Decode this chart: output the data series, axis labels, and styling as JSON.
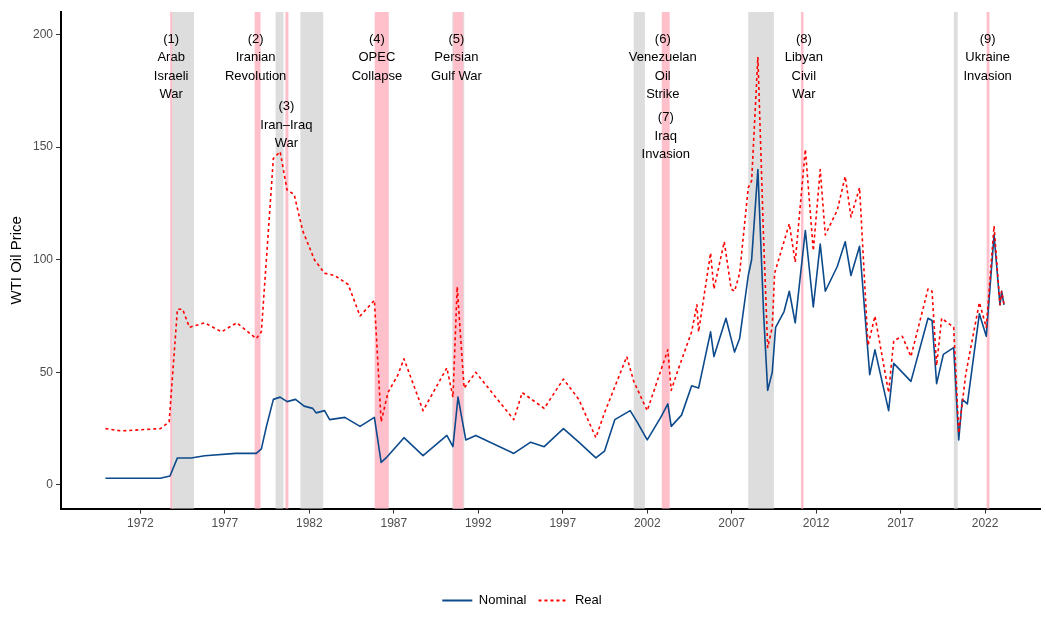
{
  "chart_data": {
    "type": "line",
    "ylabel": "WTI Oil Price",
    "legend": "bottom",
    "xlim": [
      1967.3,
      2025.25
    ],
    "xticks": [
      1972,
      1977,
      1982,
      1987,
      1992,
      1997,
      2002,
      2007,
      2012,
      2017,
      2022
    ],
    "ylim": [
      -10.5,
      210
    ],
    "yticks": [
      0,
      50,
      100,
      150,
      200
    ],
    "series": [
      {
        "name": "Nominal",
        "color": "#0c4a8c",
        "line_style": "solid",
        "x": [
          1969.93,
          1973.18,
          1973.75,
          1974.19,
          1975.0,
          1975.81,
          1977.64,
          1978.86,
          1979.16,
          1979.46,
          1979.87,
          1980.27,
          1980.68,
          1981.18,
          1981.69,
          1982.2,
          1982.4,
          1982.9,
          1983.2,
          1984.1,
          1985.0,
          1985.85,
          1986.25,
          1986.54,
          1987.25,
          1987.6,
          1988.73,
          1990.14,
          1990.5,
          1990.8,
          1991.26,
          1991.85,
          1994.1,
          1995.1,
          1995.9,
          1997.04,
          1997.95,
          1998.96,
          1999.47,
          2000.08,
          2000.99,
          2001.4,
          2002.0,
          2002.8,
          2003.22,
          2003.42,
          2004.03,
          2004.63,
          2005.04,
          2005.75,
          2005.95,
          2006.66,
          2007.17,
          2007.47,
          2007.98,
          2008.18,
          2008.55,
          2008.89,
          2009.13,
          2009.4,
          2009.6,
          2010.1,
          2010.41,
          2010.76,
          2011.36,
          2011.83,
          2012.24,
          2012.54,
          2013.25,
          2013.72,
          2014.06,
          2014.57,
          2015.17,
          2015.48,
          2016.29,
          2016.59,
          2017.61,
          2018.62,
          2018.86,
          2019.13,
          2019.53,
          2020.14,
          2020.44,
          2020.65,
          2020.95,
          2021.66,
          2022.07,
          2022.53,
          2022.88,
          2022.98,
          2023.12
        ],
        "values": [
          3,
          3,
          4,
          12,
          12,
          13,
          14,
          14,
          16,
          26,
          38,
          39,
          37,
          38,
          35,
          34,
          32,
          33,
          29,
          30,
          26,
          30,
          10,
          12,
          18,
          21,
          13,
          22,
          17,
          39,
          20,
          22,
          14,
          19,
          17,
          25,
          19,
          12,
          15,
          29,
          33,
          28,
          20,
          30,
          36,
          26,
          31,
          44,
          43,
          68,
          57,
          74,
          59,
          65,
          93,
          100,
          140,
          76,
          42,
          50,
          70,
          77,
          86,
          72,
          113,
          79,
          107,
          86,
          97,
          108,
          93,
          106,
          49,
          60,
          33,
          54,
          46,
          74,
          73,
          45,
          58,
          61,
          20,
          38,
          36,
          76,
          66,
          111,
          80,
          86,
          80
        ]
      },
      {
        "name": "Real",
        "color": "#ff0000",
        "line_style": "dotted",
        "x": [
          1969.93,
          1970.85,
          1973.18,
          1973.7,
          1974.19,
          1974.5,
          1974.9,
          1975.81,
          1976.8,
          1977.7,
          1978.86,
          1979.16,
          1979.87,
          1980.27,
          1980.68,
          1981.1,
          1981.6,
          1982.3,
          1982.9,
          1983.5,
          1984.3,
          1985.0,
          1985.85,
          1986.25,
          1986.65,
          1987.25,
          1987.6,
          1988.73,
          1990.14,
          1990.5,
          1990.75,
          1991.16,
          1991.85,
          1994.1,
          1994.6,
          1995.9,
          1997.04,
          1997.95,
          1998.96,
          1999.47,
          2000.79,
          2001.2,
          2002.0,
          2003.22,
          2003.42,
          2003.82,
          2004.63,
          2004.94,
          2005.04,
          2005.75,
          2005.95,
          2006.56,
          2006.97,
          2007.17,
          2007.47,
          2007.98,
          2008.18,
          2008.55,
          2008.89,
          2009.13,
          2009.4,
          2009.54,
          2010.41,
          2010.76,
          2011.36,
          2011.83,
          2012.24,
          2012.54,
          2013.25,
          2013.72,
          2014.06,
          2014.57,
          2015.07,
          2015.48,
          2016.29,
          2016.59,
          2017.1,
          2017.61,
          2018.62,
          2018.86,
          2019.13,
          2019.43,
          2020.14,
          2020.44,
          2020.85,
          2021.66,
          2022.07,
          2022.53,
          2022.88,
          2022.98,
          2023.12
        ],
        "values": [
          25,
          24,
          25,
          28,
          78,
          78,
          70,
          72,
          68,
          72,
          65,
          68,
          145,
          148,
          131,
          129,
          113,
          100,
          94,
          93,
          89,
          75,
          82,
          28,
          41,
          49,
          56,
          33,
          52,
          39,
          88,
          43,
          50,
          29,
          41,
          34,
          47,
          38,
          21,
          32,
          57,
          46,
          33,
          60,
          42,
          51,
          68,
          80,
          68,
          103,
          87,
          108,
          87,
          86,
          94,
          132,
          135,
          190,
          109,
          61,
          70,
          94,
          116,
          99,
          149,
          104,
          140,
          111,
          122,
          137,
          119,
          132,
          62,
          75,
          41,
          64,
          66,
          57,
          87,
          86,
          53,
          74,
          70,
          23,
          49,
          81,
          70,
          115,
          80,
          86,
          80
        ]
      }
    ],
    "bands": [
      {
        "axis": "x",
        "from": 1973.76,
        "to": 1973.94,
        "color": "#ffc0cb"
      },
      {
        "axis": "x",
        "from": 1973.88,
        "to": 1975.17,
        "color": "#dddddd"
      },
      {
        "axis": "x",
        "from": 1978.76,
        "to": 1979.11,
        "color": "#ffc0cb"
      },
      {
        "axis": "x",
        "from": 1980.0,
        "to": 1980.47,
        "color": "#dddddd"
      },
      {
        "axis": "x",
        "from": 1980.58,
        "to": 1980.76,
        "color": "#ffc0cb"
      },
      {
        "axis": "x",
        "from": 1981.47,
        "to": 1982.82,
        "color": "#dddddd"
      },
      {
        "axis": "x",
        "from": 1985.87,
        "to": 1986.7,
        "color": "#ffc0cb"
      },
      {
        "axis": "x",
        "from": 1990.46,
        "to": 1991.17,
        "color": "#dddddd"
      },
      {
        "axis": "x",
        "from": 1990.52,
        "to": 1991.11,
        "color": "#ffc0cb"
      },
      {
        "axis": "x",
        "from": 2001.2,
        "to": 2001.86,
        "color": "#dddddd"
      },
      {
        "axis": "x",
        "from": 2002.86,
        "to": 2003.33,
        "color": "#ffc0cb"
      },
      {
        "axis": "x",
        "from": 2007.98,
        "to": 2009.5,
        "color": "#dddddd"
      },
      {
        "axis": "x",
        "from": 2011.1,
        "to": 2011.25,
        "color": "#ffc0cb"
      },
      {
        "axis": "x",
        "from": 2020.15,
        "to": 2020.38,
        "color": "#dddddd"
      },
      {
        "axis": "x",
        "from": 2022.09,
        "to": 2022.26,
        "color": "#ffc0cb"
      }
    ],
    "annotations": [
      {
        "text": "(1)\nArab\nIsraeli\nWar",
        "x": 1973.82,
        "y": 198
      },
      {
        "text": "(2)\nIranian\nRevolution",
        "x": 1978.82,
        "y": 198
      },
      {
        "text": "(3)\nIran–Iraq\nWar",
        "x": 1980.64,
        "y": 168
      },
      {
        "text": "(4)\nOPEC\nCollapse",
        "x": 1986.0,
        "y": 198
      },
      {
        "text": "(5)\nPersian\nGulf War",
        "x": 1990.7,
        "y": 198
      },
      {
        "text": "(6)\nVenezuelan\nOil\nStrike",
        "x": 2002.92,
        "y": 198
      },
      {
        "text": "(7)\nIraq\nInvasion",
        "x": 2003.1,
        "y": 163
      },
      {
        "text": "(8)\nLibyan\nCivil\nWar",
        "x": 2011.27,
        "y": 198
      },
      {
        "text": "(9)\nUkraine\nInvasion",
        "x": 2022.15,
        "y": 198
      }
    ]
  }
}
